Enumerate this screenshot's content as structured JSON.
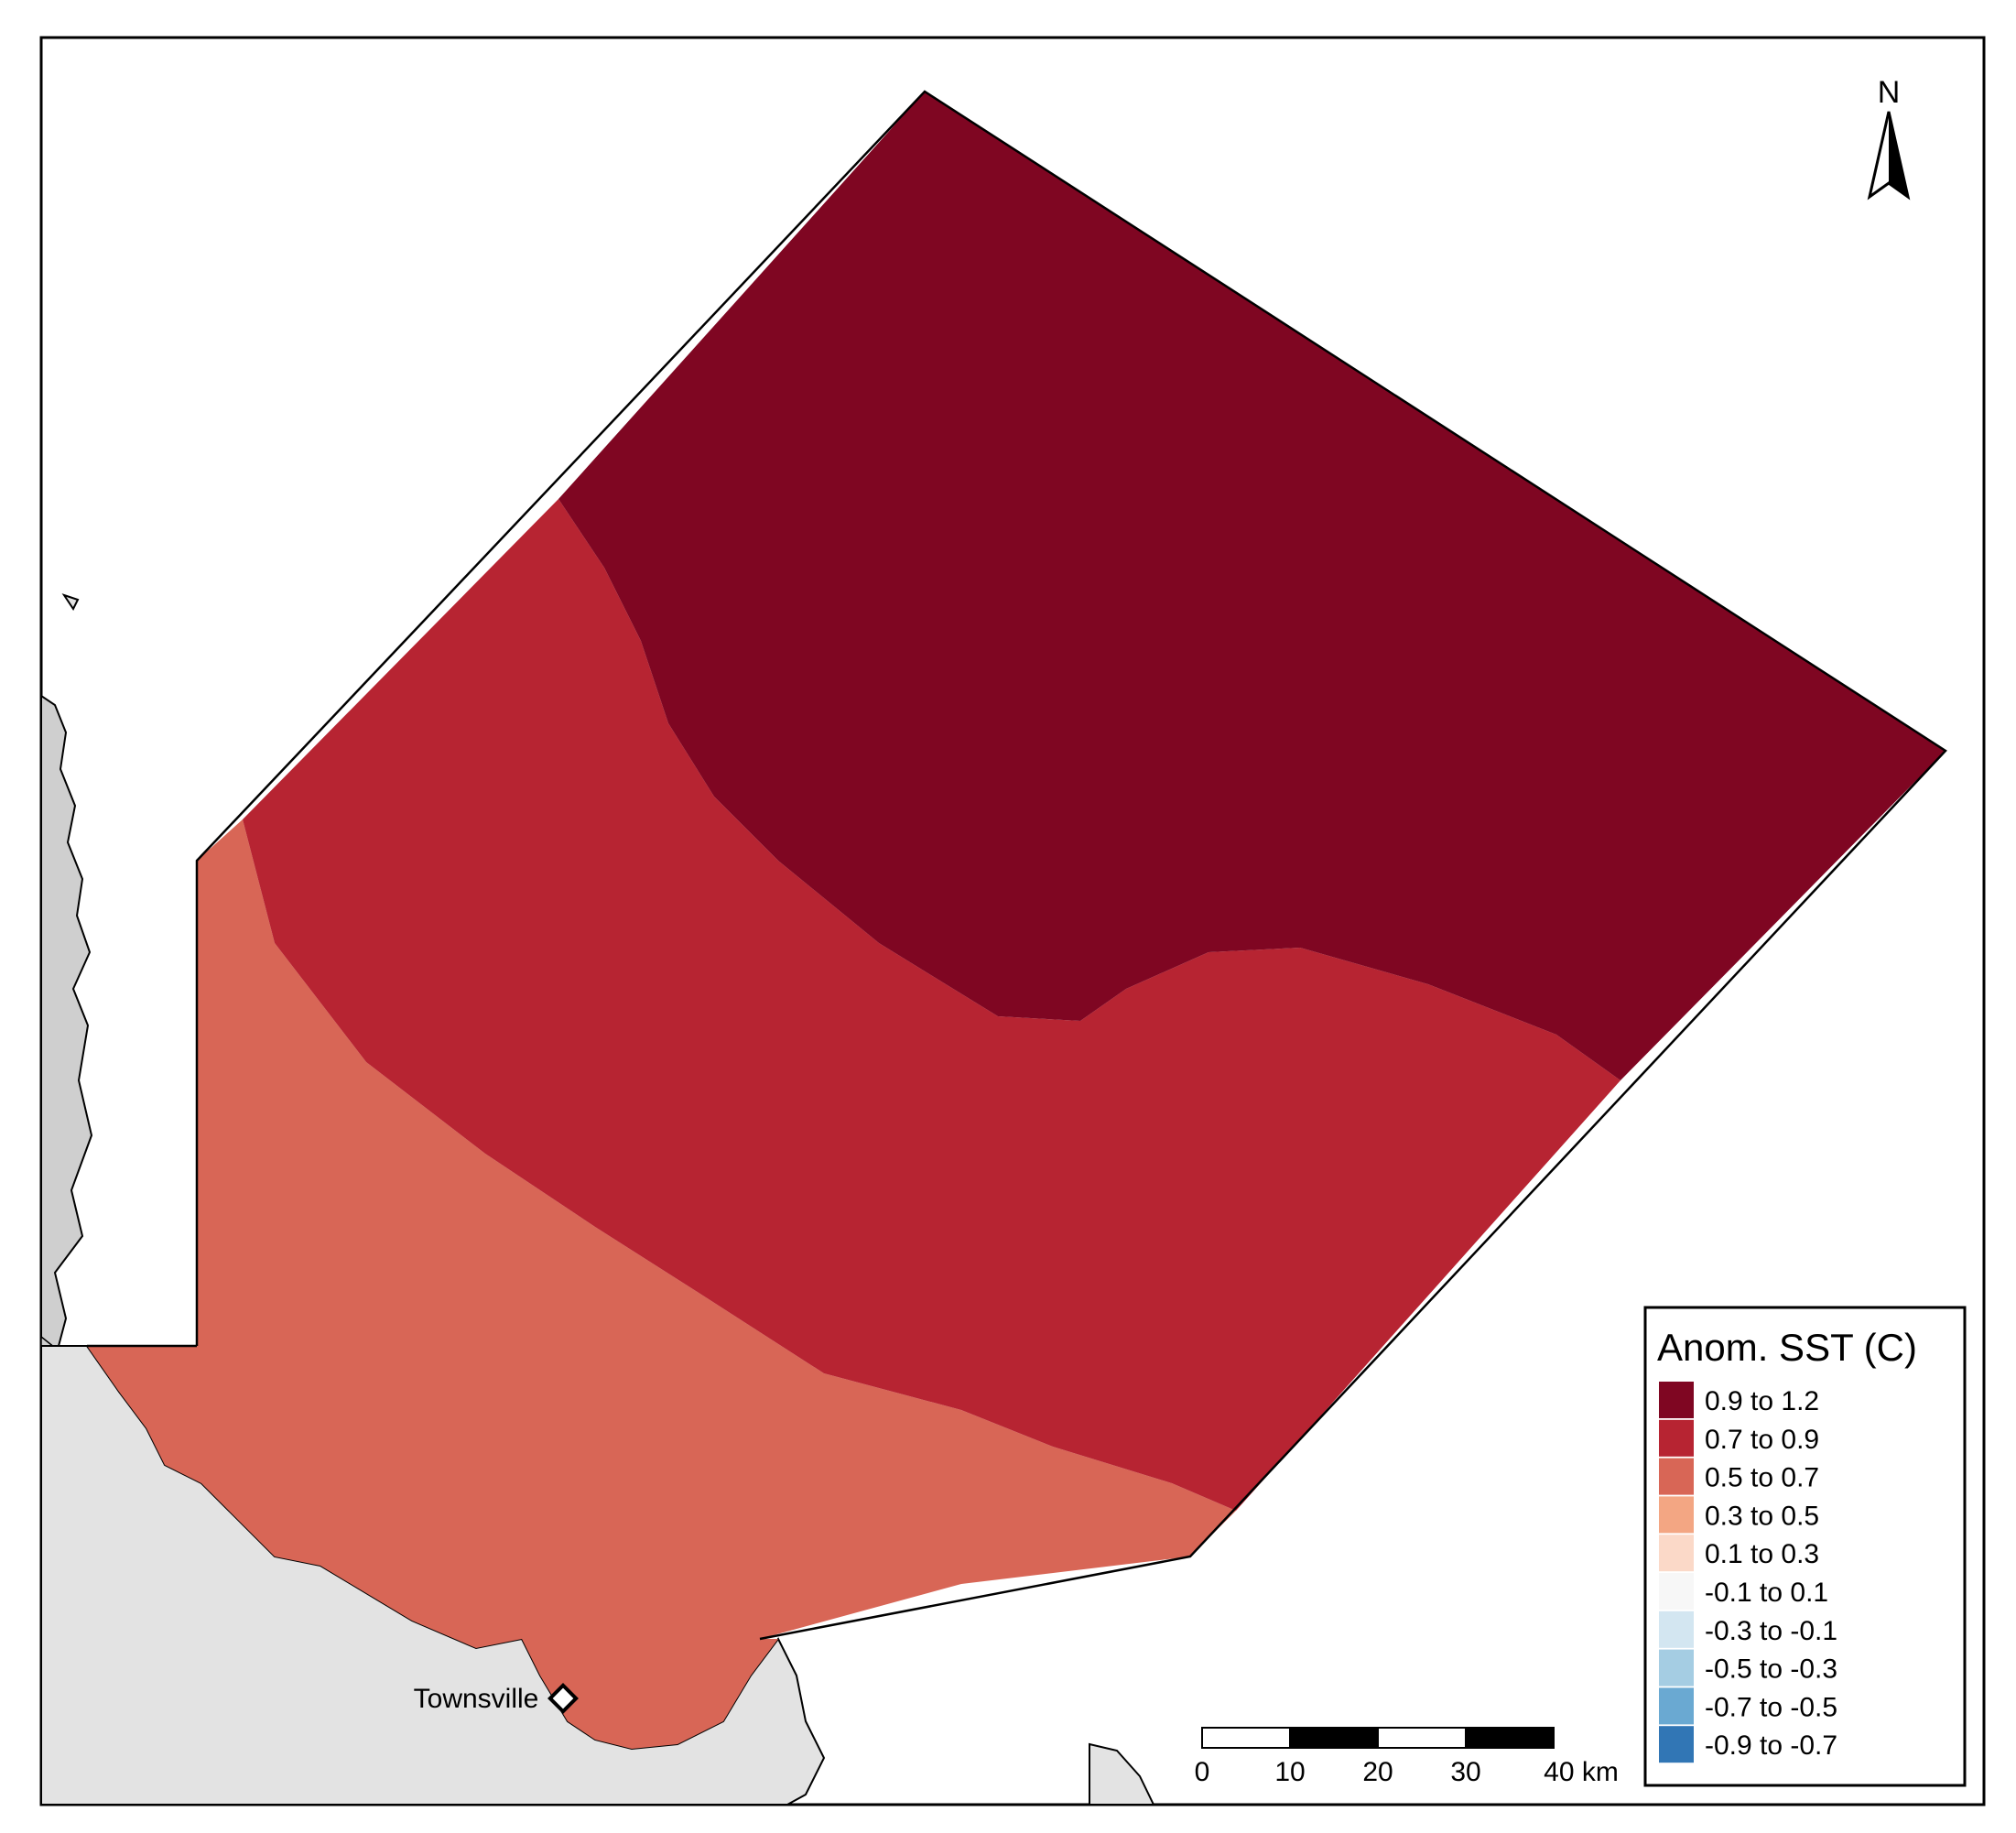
{
  "map": {
    "place_label": "Townsville",
    "north_label": "N"
  },
  "legend": {
    "title": "Anom. SST (C)",
    "items": [
      {
        "label": "0.9 to 1.2",
        "color": "#7f0622"
      },
      {
        "label": "0.7 to 0.9",
        "color": "#b72432"
      },
      {
        "label": "0.5 to 0.7",
        "color": "#d86656"
      },
      {
        "label": "0.3 to 0.5",
        "color": "#f3a683"
      },
      {
        "label": "0.1 to 0.3",
        "color": "#fbd9c8"
      },
      {
        "label": "-0.1 to 0.1",
        "color": "#f7f7f7"
      },
      {
        "label": "-0.3 to -0.1",
        "color": "#d3e6f1"
      },
      {
        "label": "-0.5 to -0.3",
        "color": "#a5cde3"
      },
      {
        "label": "-0.7 to -0.5",
        "color": "#6aa9d2"
      },
      {
        "label": "-0.9 to -0.7",
        "color": "#3176b5"
      }
    ]
  },
  "scale_bar": {
    "ticks": [
      "0",
      "10",
      "20",
      "30",
      "40 km"
    ]
  },
  "colors": {
    "land": "#e3e3e3",
    "land_dark": "#cfcfcf",
    "water": "#ffffff"
  }
}
